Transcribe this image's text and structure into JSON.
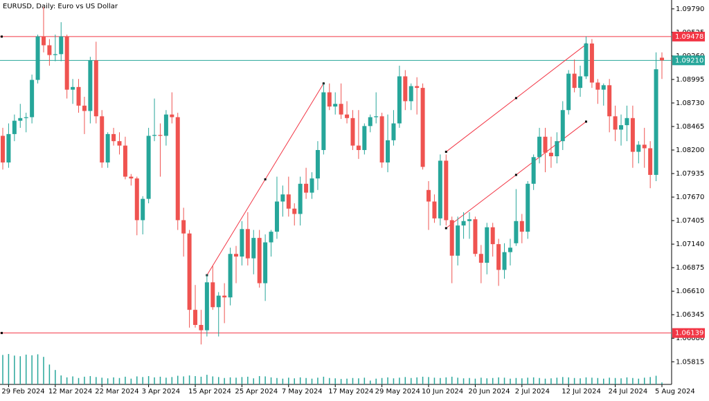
{
  "chart_data": {
    "type": "candlestick",
    "title": "EURUSD, Daily:  Euro vs US Dollar",
    "categories": [
      null,
      "29 Feb 2024",
      null,
      null,
      null,
      null,
      null,
      null,
      null,
      "12 Mar 2024",
      null,
      null,
      null,
      null,
      null,
      null,
      null,
      "22 Mar 2024",
      null,
      null,
      null,
      null,
      null,
      null,
      null,
      "3 Apr 2024",
      null,
      null,
      null,
      null,
      null,
      null,
      null,
      "15 Apr 2024",
      null,
      null,
      null,
      null,
      null,
      null,
      null,
      "25 Apr 2024",
      null,
      null,
      null,
      null,
      null,
      null,
      null,
      "7 May 2024",
      null,
      null,
      null,
      null,
      null,
      null,
      null,
      "17 May 2024",
      null,
      null,
      null,
      null,
      null,
      null,
      null,
      "29 May 2024",
      null,
      null,
      null,
      null,
      null,
      null,
      null,
      "10 Jun 2024",
      null,
      null,
      null,
      null,
      null,
      null,
      null,
      "20 Jun 2024",
      null,
      null,
      null,
      null,
      null,
      null,
      null,
      "2 Jul 2024",
      null,
      null,
      null,
      null,
      null,
      null,
      null,
      "12 Jul 2024",
      null,
      null,
      null,
      null,
      null,
      null,
      null,
      "24 Jul 2024",
      null,
      null,
      null,
      null,
      null,
      null,
      null,
      "5 Aug 2024"
    ],
    "open": [
      1.0836,
      1.0806,
      1.0838,
      1.0853,
      1.0856,
      1.0857,
      1.0899,
      1.0948,
      1.0938,
      1.0927,
      1.0928,
      1.0948,
      1.0888,
      1.0891,
      1.087,
      1.0864,
      1.0921,
      1.0858,
      1.0806,
      1.0838,
      1.083,
      1.0825,
      1.079,
      1.0788,
      1.0741,
      1.0765,
      1.0836,
      1.0837,
      1.0836,
      1.086,
      1.0857,
      1.0741,
      1.0726,
      1.064,
      1.0623,
      1.0617,
      1.0671,
      1.0643,
      1.0656,
      1.0654,
      1.0703,
      1.07,
      1.0731,
      1.0698,
      1.0721,
      1.067,
      1.0716,
      1.0728,
      1.0762,
      1.077,
      1.0754,
      1.0748,
      1.0782,
      1.0772,
      1.0788,
      1.082,
      1.0885,
      1.0869,
      1.0872,
      1.086,
      1.0856,
      1.0825,
      1.082,
      1.0847,
      1.0857,
      1.0858,
      1.0806,
      1.0831,
      1.085,
      1.0903,
      1.0875,
      1.0892,
      1.089,
      1.0775,
      1.0762,
      1.0743,
      1.0808,
      1.0741,
      1.0701,
      1.0735,
      1.074,
      1.0742,
      1.0703,
      1.0693,
      1.0733,
      1.0714,
      1.0685,
      1.0705,
      1.0715,
      1.074,
      1.0728,
      1.0782,
      1.0812,
      1.0835,
      1.0817,
      1.0813,
      1.083,
      1.0865,
      1.0906,
      1.089,
      1.0903,
      1.094,
      1.0896,
      1.0888,
      1.0893,
      1.0858,
      1.0843,
      1.0848,
      1.0856,
      1.0818,
      1.0826,
      1.0822,
      1.0792,
      1.0924
    ],
    "high": [
      1.0845,
      1.085,
      1.086,
      1.0872,
      1.0862,
      1.0905,
      1.095,
      1.0981,
      1.0945,
      1.095,
      1.0964,
      1.095,
      1.09,
      1.09,
      1.088,
      1.0925,
      1.0942,
      1.0865,
      1.084,
      1.0845,
      1.084,
      1.0835,
      1.0793,
      1.079,
      1.0768,
      1.0845,
      1.0878,
      1.085,
      1.0865,
      1.0885,
      1.0862,
      1.0755,
      1.073,
      1.0668,
      1.064,
      1.068,
      1.069,
      1.066,
      1.067,
      1.071,
      1.0712,
      1.074,
      1.075,
      1.073,
      1.073,
      1.0725,
      1.073,
      1.079,
      1.078,
      1.079,
      1.076,
      1.079,
      1.08,
      1.0795,
      1.083,
      1.0895,
      1.0895,
      1.0885,
      1.0895,
      1.0875,
      1.0865,
      1.0865,
      1.085,
      1.086,
      1.0885,
      1.0862,
      1.086,
      1.0865,
      1.0915,
      1.091,
      1.0895,
      1.0902,
      1.0895,
      1.0785,
      1.077,
      1.0815,
      1.0815,
      1.0745,
      1.0745,
      1.075,
      1.075,
      1.0745,
      1.0713,
      1.0738,
      1.0738,
      1.072,
      1.0715,
      1.072,
      1.0776,
      1.0748,
      1.0785,
      1.0815,
      1.0845,
      1.0845,
      1.0835,
      1.084,
      1.0875,
      1.091,
      1.0922,
      1.0915,
      1.0948,
      1.0945,
      1.09,
      1.0895,
      1.09,
      1.087,
      1.086,
      1.087,
      1.087,
      1.083,
      1.0845,
      1.083,
      1.093,
      1.093
    ],
    "low": [
      1.0798,
      1.08,
      1.083,
      1.0845,
      1.084,
      1.085,
      1.0895,
      1.093,
      1.0915,
      1.092,
      1.092,
      1.0878,
      1.0872,
      1.0862,
      1.0838,
      1.085,
      1.085,
      1.08,
      1.08,
      1.0825,
      1.0815,
      1.0787,
      1.078,
      1.0724,
      1.0725,
      1.076,
      1.083,
      1.079,
      1.0825,
      1.085,
      1.073,
      1.07,
      1.062,
      1.062,
      1.0601,
      1.061,
      1.064,
      1.061,
      1.0625,
      1.0645,
      1.067,
      1.069,
      1.069,
      1.068,
      1.0665,
      1.065,
      1.07,
      1.072,
      1.0745,
      1.0745,
      1.0735,
      1.0735,
      1.0765,
      1.0765,
      1.0775,
      1.0815,
      1.0865,
      1.086,
      1.0855,
      1.085,
      1.082,
      1.081,
      1.0815,
      1.084,
      1.085,
      1.08,
      1.0795,
      1.0825,
      1.0845,
      1.0865,
      1.0865,
      1.086,
      1.0798,
      1.073,
      1.0738,
      1.0735,
      1.0735,
      1.067,
      1.069,
      1.072,
      1.072,
      1.07,
      1.067,
      1.068,
      1.07,
      1.0667,
      1.0675,
      1.069,
      1.0712,
      1.0715,
      1.072,
      1.0775,
      1.0805,
      1.0795,
      1.08,
      1.0805,
      1.082,
      1.086,
      1.0885,
      1.088,
      1.09,
      1.089,
      1.0872,
      1.087,
      1.084,
      1.083,
      1.0825,
      1.083,
      1.08,
      1.0805,
      1.08,
      1.0777,
      1.0785,
      1.09
    ],
    "close": [
      1.0806,
      1.0838,
      1.0853,
      1.0856,
      1.0857,
      1.0899,
      1.0948,
      1.0938,
      1.0927,
      1.0928,
      1.0948,
      1.0888,
      1.0891,
      1.087,
      1.0864,
      1.0921,
      1.0858,
      1.0806,
      1.0838,
      1.083,
      1.0825,
      1.079,
      1.0788,
      1.0741,
      1.0765,
      1.0836,
      1.0837,
      1.0836,
      1.086,
      1.0857,
      1.0741,
      1.0726,
      1.064,
      1.0623,
      1.0617,
      1.0671,
      1.0643,
      1.0656,
      1.0654,
      1.0703,
      1.07,
      1.0731,
      1.0698,
      1.0721,
      1.067,
      1.0716,
      1.0728,
      1.0762,
      1.077,
      1.0754,
      1.0748,
      1.0782,
      1.0772,
      1.0788,
      1.082,
      1.0885,
      1.0869,
      1.0872,
      1.086,
      1.0856,
      1.0825,
      1.082,
      1.0847,
      1.0857,
      1.0858,
      1.0806,
      1.0831,
      1.085,
      1.0903,
      1.0875,
      1.0892,
      1.089,
      1.0801,
      1.0762,
      1.0743,
      1.0808,
      1.0741,
      1.0701,
      1.0735,
      1.074,
      1.0742,
      1.0703,
      1.0693,
      1.0733,
      1.0714,
      1.0685,
      1.0705,
      1.071,
      1.074,
      1.0728,
      1.0782,
      1.0812,
      1.0835,
      1.0817,
      1.0813,
      1.083,
      1.0865,
      1.0906,
      1.089,
      1.0903,
      1.094,
      1.0896,
      1.0888,
      1.0893,
      1.0858,
      1.0843,
      1.0848,
      1.0856,
      1.0818,
      1.0826,
      1.0822,
      1.0792,
      1.0911,
      1.0921
    ],
    "volume": [
      92000,
      95000,
      90000,
      88000,
      93000,
      91000,
      94000,
      86000,
      62000,
      45000,
      28000,
      22000,
      25000,
      20000,
      24000,
      26000,
      23000,
      21000,
      19000,
      22000,
      20000,
      24000,
      18000,
      25000,
      23000,
      26000,
      22000,
      24000,
      21000,
      23000,
      27000,
      25000,
      28000,
      26000,
      24000,
      30000,
      25000,
      23000,
      20000,
      22000,
      21000,
      23000,
      24000,
      19000,
      26000,
      25000,
      22000,
      20000,
      18000,
      21000,
      19000,
      22000,
      20000,
      18000,
      21000,
      24000,
      20000,
      19000,
      17000,
      18000,
      20000,
      19000,
      21000,
      12000,
      18000,
      20000,
      22000,
      19000,
      21000,
      23000,
      20000,
      22000,
      24000,
      23000,
      21000,
      20000,
      22000,
      24000,
      21000,
      19000,
      20000,
      18000,
      21000,
      19000,
      20000,
      22000,
      21000,
      18000,
      20000,
      19000,
      21000,
      22000,
      20000,
      18000,
      19000,
      21000,
      23000,
      22000,
      20000,
      19000,
      22000,
      21000,
      20000,
      18000,
      21000,
      20000,
      19000,
      22000,
      20000,
      18000,
      21000,
      23000,
      27000,
      6000
    ],
    "bull_color": "#26a69a",
    "bear_color": "#ef5350",
    "ylim": [
      1.0556,
      1.0989
    ],
    "yticks": [
      {
        "value": 1.0979,
        "label": "1.09790"
      },
      1.09525,
      {
        "value": 1.0926,
        "label": "1.09260"
      },
      1.08995,
      {
        "value": 1.0873,
        "label": "1.08730"
      },
      1.08465,
      {
        "value": 1.082,
        "label": "1.08200"
      },
      1.07935,
      {
        "value": 1.0767,
        "label": "1.07670"
      },
      1.07405,
      {
        "value": 1.0714,
        "label": "1.07140"
      },
      1.06875,
      {
        "value": 1.0661,
        "label": "1.06610"
      },
      1.06345,
      {
        "value": 1.0608,
        "label": "1.06080"
      },
      1.05815
    ],
    "price_lines": [
      {
        "price": 1.09478,
        "color": "#f23645"
      },
      {
        "price": {
          "value": 1.0921,
          "label": "1.09210"
        },
        "color": "#26a69a"
      },
      {
        "price": 1.06139,
        "color": "#f23645"
      }
    ],
    "trendlines": [
      {
        "bars": [
          35,
          55
        ],
        "prices": [
          1.0679,
          1.0895
        ],
        "color": "#f23645"
      },
      {
        "bars": [
          76,
          100
        ],
        "prices": [
          1.0818,
          1.0939
        ],
        "color": "#f23645"
      },
      {
        "bars": [
          76,
          100
        ],
        "prices": [
          1.0732,
          1.0852
        ],
        "color": "#f23645"
      }
    ]
  }
}
